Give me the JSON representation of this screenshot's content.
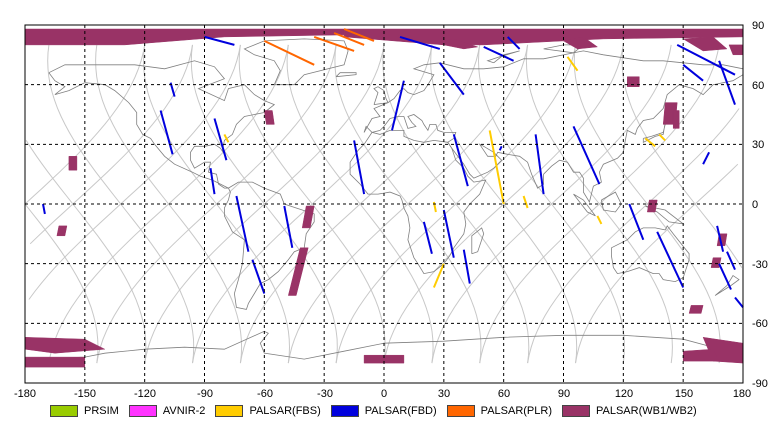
{
  "map": {
    "lon_ticks": [
      "-180",
      "-150",
      "-120",
      "-90",
      "-60",
      "-30",
      "0",
      "30",
      "60",
      "90",
      "120",
      "150",
      "180"
    ],
    "lat_ticks": [
      "90",
      "60",
      "30",
      "0",
      "-30",
      "-60",
      "-90"
    ],
    "colors": {
      "ocean": "#ffffff",
      "coast": "#808080",
      "orbit": "#c8c8c8",
      "grid": "#000000",
      "frame": "#000000"
    }
  },
  "legend": [
    {
      "label": "PRSIM",
      "color": "#99cc00"
    },
    {
      "label": "AVNIR-2",
      "color": "#ff33ff"
    },
    {
      "label": "PALSAR(FBS)",
      "color": "#ffcc00"
    },
    {
      "label": "PALSAR(FBD)",
      "color": "#0000dd"
    },
    {
      "label": "PALSAR(PLR)",
      "color": "#ff6600"
    },
    {
      "label": "PALSAR(WB1/WB2)",
      "color": "#993366"
    }
  ],
  "coverage": {
    "wb": [
      [
        [
          -180,
          88
        ],
        [
          -20,
          88
        ],
        [
          -20,
          85
        ],
        [
          -80,
          84
        ],
        [
          -130,
          80
        ],
        [
          -180,
          80
        ]
      ],
      [
        [
          -20,
          88
        ],
        [
          180,
          88
        ],
        [
          180,
          84
        ],
        [
          110,
          83
        ],
        [
          50,
          80
        ],
        [
          30,
          80
        ],
        [
          -20,
          84
        ]
      ],
      [
        [
          25,
          81
        ],
        [
          35,
          83
        ],
        [
          47,
          79
        ],
        [
          40,
          78
        ]
      ],
      [
        [
          90,
          82
        ],
        [
          100,
          84
        ],
        [
          107,
          79
        ],
        [
          97,
          78
        ]
      ],
      [
        [
          150,
          83
        ],
        [
          165,
          84
        ],
        [
          172,
          78
        ],
        [
          160,
          77
        ]
      ],
      [
        [
          173,
          80
        ],
        [
          180,
          80
        ],
        [
          180,
          75
        ],
        [
          175,
          75
        ]
      ],
      [
        [
          -60,
          47
        ],
        [
          -56,
          47
        ],
        [
          -55,
          40
        ],
        [
          -59,
          40
        ]
      ],
      [
        [
          -158,
          24
        ],
        [
          -154,
          24
        ],
        [
          -154,
          17
        ],
        [
          -158,
          17
        ]
      ],
      [
        [
          122,
          64
        ],
        [
          128,
          64
        ],
        [
          128,
          59
        ],
        [
          122,
          59
        ]
      ],
      [
        [
          141,
          51
        ],
        [
          147,
          51
        ],
        [
          146,
          40
        ],
        [
          140,
          40
        ]
      ],
      [
        [
          145,
          47
        ],
        [
          148,
          47
        ],
        [
          148,
          38
        ],
        [
          145,
          38
        ]
      ],
      [
        [
          -39,
          -1
        ],
        [
          -35,
          -1
        ],
        [
          -37,
          -12
        ],
        [
          -41,
          -12
        ]
      ],
      [
        [
          -42,
          -22
        ],
        [
          -38,
          -22
        ],
        [
          -44,
          -46
        ],
        [
          -48,
          -46
        ]
      ],
      [
        [
          -163,
          -11
        ],
        [
          -159,
          -11
        ],
        [
          -160,
          -16
        ],
        [
          -164,
          -16
        ]
      ],
      [
        [
          133,
          2
        ],
        [
          137,
          2
        ],
        [
          136,
          -4
        ],
        [
          132,
          -4
        ]
      ],
      [
        [
          168,
          -15
        ],
        [
          172,
          -15
        ],
        [
          171,
          -21
        ],
        [
          167,
          -21
        ]
      ],
      [
        [
          165,
          -27
        ],
        [
          169,
          -27
        ],
        [
          168,
          -32
        ],
        [
          164,
          -32
        ]
      ],
      [
        [
          154,
          -51
        ],
        [
          160,
          -51
        ],
        [
          159,
          -55
        ],
        [
          153,
          -55
        ]
      ],
      [
        [
          -180,
          -67
        ],
        [
          -150,
          -68
        ],
        [
          -140,
          -73
        ],
        [
          -165,
          -75
        ],
        [
          -180,
          -73
        ]
      ],
      [
        [
          -180,
          -77
        ],
        [
          -150,
          -77
        ],
        [
          -150,
          -82
        ],
        [
          -180,
          -82
        ]
      ],
      [
        [
          -10,
          -76
        ],
        [
          10,
          -76
        ],
        [
          10,
          -80
        ],
        [
          -10,
          -80
        ]
      ],
      [
        [
          160,
          -67
        ],
        [
          180,
          -70
        ],
        [
          180,
          -80
        ],
        [
          165,
          -79
        ]
      ],
      [
        [
          150,
          -74
        ],
        [
          165,
          -73
        ],
        [
          168,
          -79
        ],
        [
          150,
          -79
        ]
      ]
    ],
    "fbd": [
      [
        [
          -90,
          84
        ],
        [
          -75,
          80
        ]
      ],
      [
        [
          -112,
          47
        ],
        [
          -106,
          25
        ]
      ],
      [
        [
          -85,
          43
        ],
        [
          -79,
          22
        ]
      ],
      [
        [
          -87,
          18
        ],
        [
          -85,
          5
        ]
      ],
      [
        [
          -74,
          4
        ],
        [
          -68,
          -24
        ]
      ],
      [
        [
          -50,
          -1
        ],
        [
          -46,
          -22
        ]
      ],
      [
        [
          -66,
          -28
        ],
        [
          -60,
          -45
        ]
      ],
      [
        [
          -15,
          32
        ],
        [
          -10,
          5
        ]
      ],
      [
        [
          10,
          62
        ],
        [
          4,
          37
        ]
      ],
      [
        [
          8,
          84
        ],
        [
          28,
          78
        ]
      ],
      [
        [
          28,
          71
        ],
        [
          40,
          55
        ]
      ],
      [
        [
          35,
          35
        ],
        [
          42,
          9
        ]
      ],
      [
        [
          30,
          -3
        ],
        [
          35,
          -27
        ]
      ],
      [
        [
          20,
          -9
        ],
        [
          24,
          -25
        ]
      ],
      [
        [
          40,
          -23
        ],
        [
          43,
          -40
        ]
      ],
      [
        [
          50,
          79
        ],
        [
          65,
          72
        ]
      ],
      [
        [
          62,
          84
        ],
        [
          68,
          78
        ]
      ],
      [
        [
          76,
          35
        ],
        [
          80,
          5
        ]
      ],
      [
        [
          95,
          39
        ],
        [
          108,
          10
        ]
      ],
      [
        [
          147,
          80
        ],
        [
          176,
          65
        ]
      ],
      [
        [
          150,
          70
        ],
        [
          160,
          62
        ]
      ],
      [
        [
          168,
          72
        ],
        [
          176,
          50
        ]
      ],
      [
        [
          160,
          20
        ],
        [
          163,
          26
        ]
      ],
      [
        [
          123,
          0
        ],
        [
          130,
          -18
        ]
      ],
      [
        [
          137,
          -14
        ],
        [
          150,
          -42
        ]
      ],
      [
        [
          168,
          -30
        ],
        [
          174,
          -43
        ]
      ],
      [
        [
          176,
          -47
        ],
        [
          180,
          -52
        ]
      ],
      [
        [
          167,
          -11
        ],
        [
          170,
          -24
        ]
      ],
      [
        [
          172,
          -24
        ],
        [
          176,
          -33
        ]
      ],
      [
        [
          -171,
          0
        ],
        [
          -170,
          -5
        ]
      ],
      [
        [
          -107,
          61
        ],
        [
          -105,
          54
        ]
      ],
      [
        [
          58,
          27
        ],
        [
          59,
          29
        ]
      ]
    ],
    "fbs": [
      [
        [
          53,
          37
        ],
        [
          60,
          0
        ]
      ],
      [
        [
          92,
          74
        ],
        [
          97,
          67
        ]
      ],
      [
        [
          25,
          1
        ],
        [
          26,
          -4
        ]
      ],
      [
        [
          -80,
          35
        ],
        [
          -78,
          31
        ]
      ],
      [
        [
          30,
          -30
        ],
        [
          25,
          -42
        ]
      ],
      [
        [
          70,
          4
        ],
        [
          72,
          -2
        ]
      ],
      [
        [
          107,
          -6
        ],
        [
          109,
          -10
        ]
      ],
      [
        [
          131,
          33
        ],
        [
          136,
          29
        ]
      ],
      [
        [
          138,
          35
        ],
        [
          141,
          32
        ]
      ]
    ],
    "plr": [
      [
        [
          -20,
          88
        ],
        [
          -5,
          82
        ]
      ],
      [
        [
          -60,
          82
        ],
        [
          -35,
          70
        ]
      ],
      [
        [
          -35,
          84
        ],
        [
          -15,
          77
        ]
      ],
      [
        [
          -25,
          86
        ],
        [
          -10,
          80
        ]
      ]
    ]
  }
}
